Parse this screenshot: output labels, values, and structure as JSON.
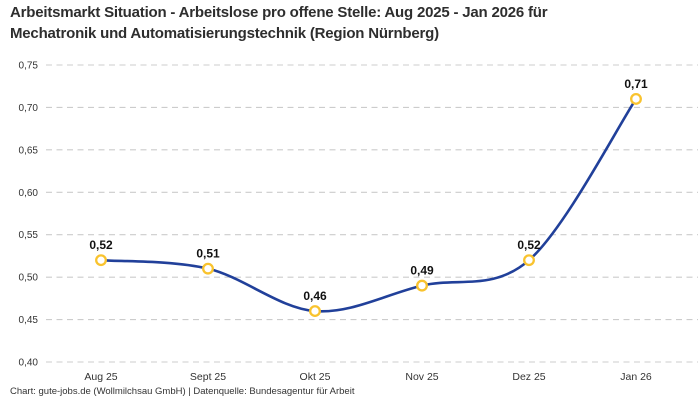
{
  "title": {
    "line1": "Arbeitsmarkt Situation - Arbeitslose pro offene Stelle: Aug 2025 - Jan 2026 für",
    "line2": "Mechatronik und Automatisierungstechnik (Region Nürnberg)"
  },
  "footer": {
    "text": "Chart: gute-jobs.de (Wollmilchsau GmbH) | Datenquelle: Bundesagentur für Arbeit"
  },
  "chart_data": {
    "type": "line",
    "title": "Arbeitsmarkt Situation - Arbeitslose pro offene Stelle: Aug 2025 - Jan 2026 für Mechatronik und Automatisierungstechnik (Region Nürnberg)",
    "categories": [
      "Aug 25",
      "Sept 25",
      "Okt 25",
      "Nov 25",
      "Dez 25",
      "Jan 26"
    ],
    "values": [
      0.52,
      0.51,
      0.46,
      0.49,
      0.52,
      0.71
    ],
    "point_labels": [
      "0,52",
      "0,51",
      "0,46",
      "0,49",
      "0,52",
      "0,71"
    ],
    "series_name": "Arbeitslose pro offene Stelle",
    "xlabel": "",
    "ylabel": "",
    "ylim": [
      0.4,
      0.75
    ],
    "y_ticks": [
      0.75,
      0.7,
      0.65,
      0.6,
      0.55,
      0.5,
      0.45,
      0.4
    ],
    "y_tick_labels": [
      "0,75",
      "0,70",
      "0,65",
      "0,60",
      "0,55",
      "0,50",
      "0,45",
      "0,40"
    ],
    "grid": "horizontal-dashed",
    "legend": "none",
    "line_style": "smooth-spline",
    "colors": {
      "line": "#21409a",
      "marker_ring": "#f9c32e",
      "marker_fill": "#ffffff",
      "gridline": "#cccccc",
      "title_text": "#2e2e2e",
      "axis_text": "#333333",
      "value_label_text": "#111111",
      "background": "#ffffff"
    }
  }
}
